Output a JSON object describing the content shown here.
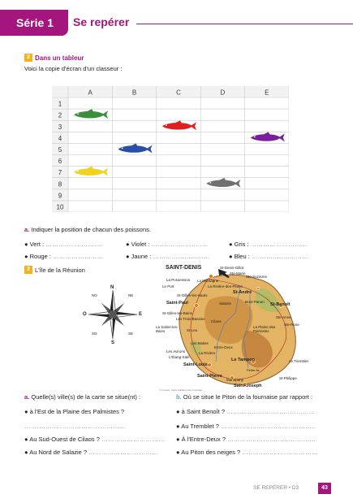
{
  "header": {
    "series": "Série 1",
    "title": "Se repérer"
  },
  "section1": {
    "badge": "2",
    "title": "Dans un tableur",
    "intro": "Voici la copie d'écran d'un classeur :"
  },
  "spreadsheet": {
    "columns": [
      "A",
      "B",
      "C",
      "D",
      "E"
    ],
    "rows": [
      "1",
      "2",
      "3",
      "4",
      "5",
      "6",
      "7",
      "8",
      "9",
      "10"
    ],
    "fish": [
      {
        "color_name": "Vert",
        "color": "#3a8f3a",
        "col": "A",
        "row": 2
      },
      {
        "color_name": "Rouge",
        "color": "#e02020",
        "col": "C",
        "row": 3
      },
      {
        "color_name": "Violet",
        "color": "#7a1f9a",
        "col": "E",
        "row": 4
      },
      {
        "color_name": "Bleu",
        "color": "#2a4fa8",
        "col": "B",
        "row": 5
      },
      {
        "color_name": "Jaune",
        "color": "#f1d21c",
        "col": "A",
        "row": 7
      },
      {
        "color_name": "Gris",
        "color": "#707070",
        "col": "D",
        "row": 8
      }
    ]
  },
  "qa1": {
    "letter": "a.",
    "text": "Indiquer la position de chacun des poissons.",
    "items": [
      {
        "label": "● Vert :",
        "dots": "………………………"
      },
      {
        "label": "● Violet :",
        "dots": "………………………"
      },
      {
        "label": "● Gris :",
        "dots": "………………………"
      },
      {
        "label": "● Rouge :",
        "dots": "……………………"
      },
      {
        "label": "● Jaune :",
        "dots": "………………………"
      },
      {
        "label": "● Bleu :",
        "dots": "………………………"
      }
    ]
  },
  "section2": {
    "badge": "3",
    "title": "L'île de la Réunion"
  },
  "compass": {
    "n": "N",
    "s": "S",
    "e": "E",
    "o": "O",
    "no": "NO",
    "ne": "NE",
    "so": "SO",
    "se": "SE"
  },
  "map": {
    "labels": {
      "saint_denis": "SAINT-DENIS",
      "st_denis_gillot": "St-Denis-Gillot",
      "ste_marie": "Ste-Marie",
      "ste_suzanne": "Ste-Suzanne",
      "la_possession": "La Possession",
      "la_montagne": "La Montagne",
      "le_port": "Le Port",
      "la_riviere_des_pluies": "La Rivière-des-Pluies",
      "st_andre": "St-André",
      "st_gilles_hauts": "St-Gilles-les-Hauts",
      "saint_paul": "Saint-Paul",
      "salazie": "Salazie",
      "bras_panon": "Bras-Panon",
      "st_benoit": "St-Benoît",
      "st_gilles_bains": "St-Gilles-les-Bains",
      "les_trois_bassins": "Les Trois-Bassins",
      "st_leu": "St-Leu",
      "cilaos": "Cilaos",
      "la_plaine_des_palmistes": "La Plaine des Palmistes",
      "ste_anne": "Ste-Anne",
      "ste_rose": "Ste-Rose",
      "la_saline": "La Saline-les-Bains",
      "les_avirons": "Les Avirons",
      "l_etang_sale": "L'Étang-Salé",
      "les_makes": "Les Makes",
      "entre_deux": "Entre-Deux",
      "la_riviere": "La Rivière",
      "le_tampon": "Le Tampon",
      "saint_louis": "Saint-Louis",
      "le_tremblet": "Le Tremblet",
      "saint_pierre": "Saint-Pierre",
      "petite_ile": "Petite-Île",
      "st_philippe": "St-Philippe",
      "manapany": "Manapany",
      "saint_joseph": "Saint-Joseph",
      "credit": "© d-maps, Carte réalisée pour l'ouvrage"
    }
  },
  "qa2": {
    "letter_a": "a.",
    "text_a": "Quelle(s) ville(s) de la carte se situe(nt) :",
    "letter_b": "b.",
    "text_b": "Où se situe le Piton de la fournaise par rapport :",
    "left": [
      {
        "label": "● à l'Est de la Plaine des Palmistes ?",
        "dots": ""
      },
      {
        "label": "",
        "dots": "…………………………………………"
      },
      {
        "label": "● Au Sud-Ouest de Cilaos ?",
        "dots": "…………………………"
      },
      {
        "label": "● Au Nord de Salazie ?",
        "dots": "……………………………"
      }
    ],
    "right": [
      {
        "label": "● à Saint Benoît ?",
        "dots": "……………………………………"
      },
      {
        "label": "● Au Tremblet ?",
        "dots": "………………………………………"
      },
      {
        "label": "● À l'Entre-Deux ?",
        "dots": "……………………………………"
      },
      {
        "label": "● Au Piton des neiges ?",
        "dots": "………………………………"
      }
    ]
  },
  "footer": {
    "text": "SE REPÉRER • D3",
    "page": "43"
  }
}
